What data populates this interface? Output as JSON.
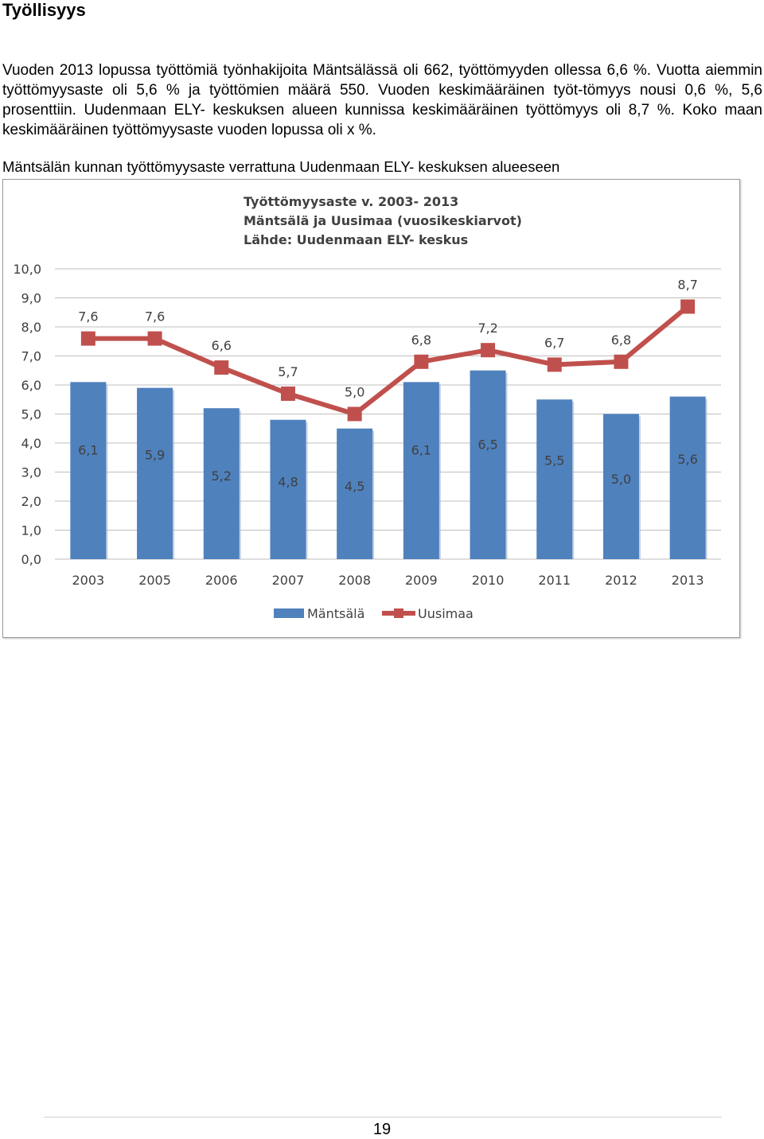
{
  "heading": "Työllisyys",
  "paragraph": "Vuoden 2013 lopussa työttömiä työnhakijoita Mäntsälässä oli 662, työttömyyden ollessa 6,6 %. Vuotta aiemmin työttömyysaste oli 5,6 % ja työttömien määrä 550. Vuoden keskimääräinen työt-tömyys nousi 0,6 %, 5,6 prosenttiin. Uudenmaan ELY- keskuksen alueen kunnissa keskimääräinen työttömyys oli 8,7 %. Koko maan keskimääräinen työttömyysaste vuoden lopussa oli x %.",
  "caption": "Mäntsälän kunnan työttömyysaste verrattuna Uudenmaan ELY- keskuksen alueeseen",
  "page_number": "19",
  "chart_data": {
    "type": "bar+line",
    "title_lines": [
      "Työttömyysaste v. 2003- 2013",
      "Mäntsälä ja Uusimaa (vuosikeskiarvot)",
      "Lähde: Uudenmaan ELY- keskus"
    ],
    "categories": [
      "2003",
      "2005",
      "2006",
      "2007",
      "2008",
      "2009",
      "2010",
      "2011",
      "2012",
      "2013"
    ],
    "series": [
      {
        "name": "Mäntsälä",
        "type": "bar",
        "color": "#4f81bd",
        "values": [
          6.1,
          5.9,
          5.2,
          4.8,
          4.5,
          6.1,
          6.5,
          5.5,
          5.0,
          5.6
        ],
        "labels": [
          "6,1",
          "5,9",
          "5,2",
          "4,8",
          "4,5",
          "6,1",
          "6,5",
          "5,5",
          "5,0",
          "5,6"
        ]
      },
      {
        "name": "Uusimaa",
        "type": "line",
        "color": "#c0504d",
        "values": [
          7.6,
          7.6,
          6.6,
          5.7,
          5.0,
          6.8,
          7.2,
          6.7,
          6.8,
          8.7
        ],
        "labels": [
          "7,6",
          "7,6",
          "6,6",
          "5,7",
          "5,0",
          "6,8",
          "7,2",
          "6,7",
          "6,8",
          "8,7"
        ]
      }
    ],
    "y_ticks": [
      "0,0",
      "1,0",
      "2,0",
      "3,0",
      "4,0",
      "5,0",
      "6,0",
      "7,0",
      "8,0",
      "9,0",
      "10,0"
    ],
    "ylim": [
      0,
      10
    ],
    "grid": true,
    "legend_position": "bottom"
  }
}
